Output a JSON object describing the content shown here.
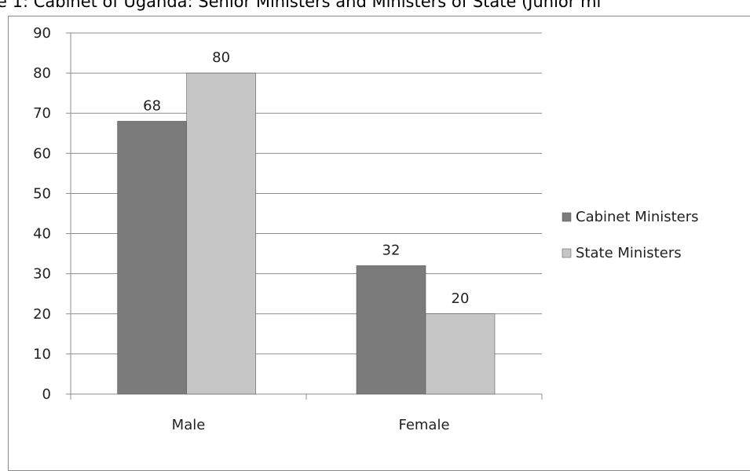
{
  "title": "e 1: Cabinet of Uganda: Senior Ministers and Ministers of State (Junior mi",
  "chart_data": {
    "type": "bar",
    "title": "e 1: Cabinet of Uganda: Senior Ministers and Ministers of State (Junior mi",
    "categories": [
      "Male",
      "Female"
    ],
    "series": [
      {
        "name": "Cabinet Ministers",
        "values": [
          68,
          32
        ],
        "color": "#7b7b7b"
      },
      {
        "name": "State Ministers",
        "values": [
          80,
          20
        ],
        "color": "#c6c6c6"
      }
    ],
    "ylim": [
      0,
      90
    ],
    "yticks": [
      0,
      10,
      20,
      30,
      40,
      50,
      60,
      70,
      80,
      90
    ],
    "grid": true,
    "legend": "right",
    "data_labels": true
  }
}
